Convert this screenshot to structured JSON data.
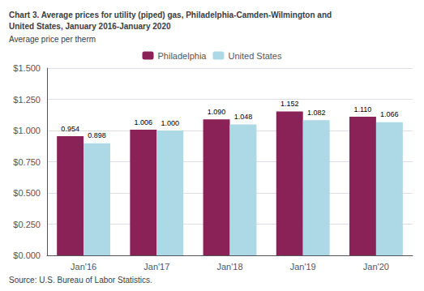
{
  "chart_data": {
    "type": "bar",
    "title": "Chart 3. Average prices for utility (piped) gas, Philadelphia-Camden-Wilmington and\nUnited States, January 2016-January 2020",
    "ylabel": "Average price per therm",
    "source": "Source: U.S. Bureau of Labor Statistics.",
    "categories": [
      "Jan'16",
      "Jan'17",
      "Jan'18",
      "Jan'19",
      "Jan'20"
    ],
    "series": [
      {
        "name": "Philadelphia",
        "color": "#8B2257",
        "values": [
          0.954,
          1.006,
          1.09,
          1.152,
          1.11
        ],
        "value_labels": [
          "0.954",
          "1.006",
          "1.090",
          "1.152",
          "1.110"
        ]
      },
      {
        "name": "United States",
        "color": "#ADD8E6",
        "values": [
          0.898,
          1.0,
          1.048,
          1.082,
          1.066
        ],
        "value_labels": [
          "0.898",
          "1.000",
          "1.048",
          "1.082",
          "1.066"
        ]
      }
    ],
    "ylim": [
      0,
      1.5
    ],
    "yticks": [
      {
        "value": 0.0,
        "label": "$0.000"
      },
      {
        "value": 0.25,
        "label": "$0.250"
      },
      {
        "value": 0.5,
        "label": "$0.500"
      },
      {
        "value": 0.75,
        "label": "$0.750"
      },
      {
        "value": 1.0,
        "label": "$1.000"
      },
      {
        "value": 1.25,
        "label": "$1.250"
      },
      {
        "value": 1.5,
        "label": "$1.500"
      }
    ],
    "grid": true,
    "legend": "top",
    "data_labels": true
  }
}
